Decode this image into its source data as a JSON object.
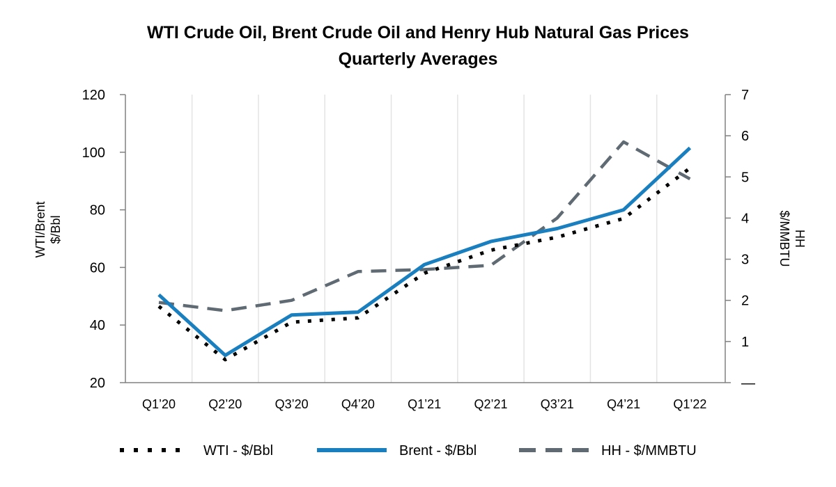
{
  "chart_data": {
    "type": "line",
    "title": "WTI Crude Oil, Brent Crude Oil and Henry Hub Natural Gas Prices",
    "subtitle": "Quarterly Averages",
    "categories": [
      "Q1’20",
      "Q2’20",
      "Q3’20",
      "Q4’20",
      "Q1’21",
      "Q2’21",
      "Q3’21",
      "Q4’21",
      "Q1’22"
    ],
    "y_left": {
      "label_line1": "WTI/Brent",
      "label_line2": "$/Bbl",
      "range": [
        20,
        120
      ],
      "ticks": [
        "20",
        "40",
        "60",
        "80",
        "100",
        "120"
      ]
    },
    "y_right": {
      "label_line1": "HH",
      "label_line2": "$/MMBTU",
      "range": [
        0,
        7
      ],
      "ticks": [
        "—",
        "1",
        "2",
        "3",
        "4",
        "5",
        "6",
        "7"
      ]
    },
    "grid": "vertical",
    "legend_position": "bottom",
    "series": [
      {
        "name": "WTI - $/Bbl",
        "axis": "left",
        "style": "dotted",
        "color": "#000000",
        "values": [
          46.5,
          28,
          41,
          42.5,
          58,
          66,
          70.5,
          77,
          94.5
        ]
      },
      {
        "name": "Brent - $/Bbl",
        "axis": "left",
        "style": "solid",
        "color": "#1a7fbe",
        "values": [
          50.5,
          29.5,
          43.5,
          44.5,
          61,
          69,
          73.5,
          80,
          101.5
        ]
      },
      {
        "name": "HH - $/MMBTU",
        "axis": "right",
        "style": "dashed",
        "color": "#5f6a73",
        "values": [
          1.95,
          1.75,
          2.0,
          2.7,
          2.75,
          2.85,
          4.0,
          5.85,
          4.95
        ]
      }
    ]
  }
}
